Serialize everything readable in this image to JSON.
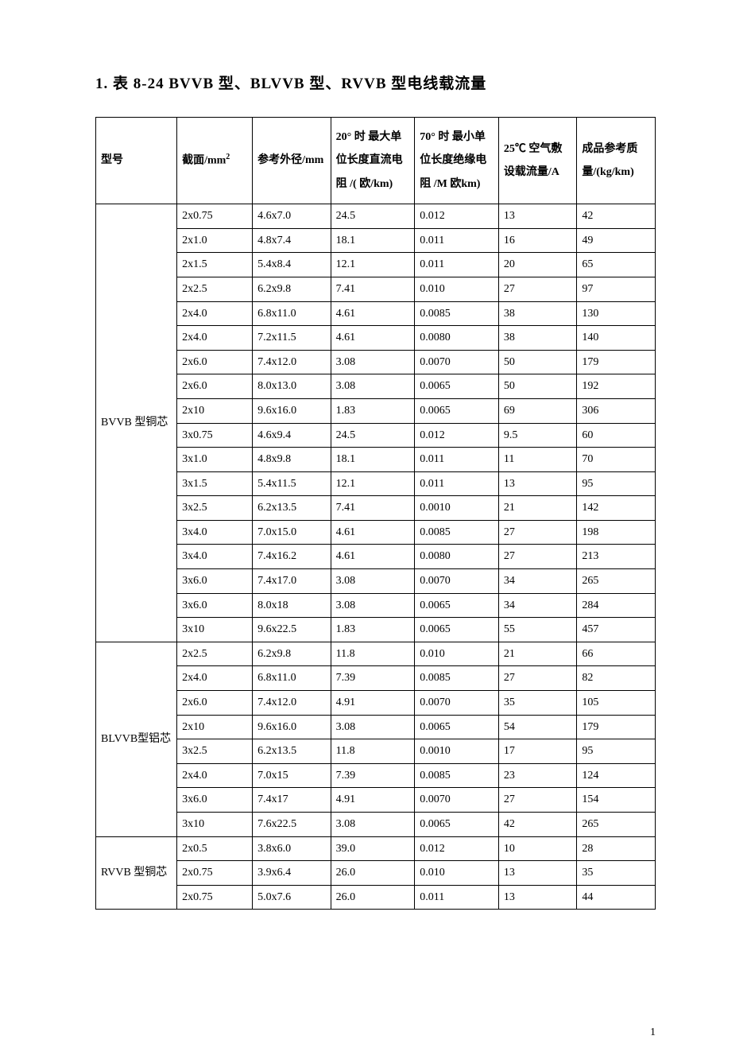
{
  "title": "1. 表 8-24 BVVB 型、BLVVB 型、RVVB 型电线载流量",
  "page_number": "1",
  "table": {
    "columns": [
      {
        "key": "model",
        "label": "型号"
      },
      {
        "key": "section",
        "label": "截面/mm²"
      },
      {
        "key": "diameter",
        "label": "参考外径/mm"
      },
      {
        "key": "dc20",
        "label": "20° 时 最大单位长度直流电阻 /( 欧/km)"
      },
      {
        "key": "ins70",
        "label": "70° 时 最小单位长度绝缘电阻 /M 欧km)"
      },
      {
        "key": "current",
        "label": "25℃ 空气敷设载流量/A"
      },
      {
        "key": "mass",
        "label": "成品参考质 量/(kg/km)"
      }
    ],
    "groups": [
      {
        "model": "BVVB 型铜芯",
        "rows": [
          [
            "2x0.75",
            "4.6x7.0",
            "24.5",
            "0.012",
            "13",
            "42"
          ],
          [
            "2x1.0",
            "4.8x7.4",
            "18.1",
            "0.011",
            "16",
            "49"
          ],
          [
            "2x1.5",
            "5.4x8.4",
            "12.1",
            "0.011",
            "20",
            "65"
          ],
          [
            "2x2.5",
            "6.2x9.8",
            "7.41",
            "0.010",
            "27",
            "97"
          ],
          [
            "2x4.0",
            "6.8x11.0",
            "4.61",
            "0.0085",
            "38",
            "130"
          ],
          [
            "2x4.0",
            "7.2x11.5",
            "4.61",
            "0.0080",
            "38",
            "140"
          ],
          [
            "2x6.0",
            "7.4x12.0",
            "3.08",
            "0.0070",
            "50",
            "179"
          ],
          [
            "2x6.0",
            "8.0x13.0",
            "3.08",
            "0.0065",
            "50",
            "192"
          ],
          [
            "2x10",
            "9.6x16.0",
            "1.83",
            "0.0065",
            "69",
            "306"
          ],
          [
            "3x0.75",
            "4.6x9.4",
            "24.5",
            "0.012",
            "9.5",
            "60"
          ],
          [
            "3x1.0",
            "4.8x9.8",
            "18.1",
            "0.011",
            "11",
            "70"
          ],
          [
            "3x1.5",
            "5.4x11.5",
            "12.1",
            "0.011",
            "13",
            "95"
          ],
          [
            "3x2.5",
            "6.2x13.5",
            "7.41",
            "0.0010",
            "21",
            "142"
          ],
          [
            "3x4.0",
            "7.0x15.0",
            "4.61",
            "0.0085",
            "27",
            "198"
          ],
          [
            "3x4.0",
            "7.4x16.2",
            "4.61",
            "0.0080",
            "27",
            "213"
          ],
          [
            "3x6.0",
            "7.4x17.0",
            "3.08",
            "0.0070",
            "34",
            "265"
          ],
          [
            "3x6.0",
            "8.0x18",
            "3.08",
            "0.0065",
            "34",
            "284"
          ],
          [
            "3x10",
            "9.6x22.5",
            "1.83",
            "0.0065",
            "55",
            "457"
          ]
        ]
      },
      {
        "model": "BLVVB型铝芯",
        "rows": [
          [
            "2x2.5",
            "6.2x9.8",
            "11.8",
            "0.010",
            "21",
            "66"
          ],
          [
            "2x4.0",
            "6.8x11.0",
            "7.39",
            "0.0085",
            "27",
            "82"
          ],
          [
            "2x6.0",
            "7.4x12.0",
            "4.91",
            "0.0070",
            "35",
            "105"
          ],
          [
            "2x10",
            "9.6x16.0",
            "3.08",
            "0.0065",
            "54",
            "179"
          ],
          [
            "3x2.5",
            "6.2x13.5",
            "11.8",
            "0.0010",
            "17",
            "95"
          ],
          [
            "2x4.0",
            "7.0x15",
            "7.39",
            "0.0085",
            "23",
            "124"
          ],
          [
            "3x6.0",
            "7.4x17",
            "4.91",
            "0.0070",
            "27",
            "154"
          ],
          [
            "3x10",
            "7.6x22.5",
            "3.08",
            "0.0065",
            "42",
            "265"
          ]
        ]
      },
      {
        "model": "RVVB 型铜芯",
        "rows": [
          [
            "2x0.5",
            "3.8x6.0",
            "39.0",
            "0.012",
            "10",
            "28"
          ],
          [
            "2x0.75",
            "3.9x6.4",
            "26.0",
            "0.010",
            "13",
            "35"
          ],
          [
            "2x0.75",
            "5.0x7.6",
            "26.0",
            "0.011",
            "13",
            "44"
          ]
        ]
      }
    ]
  },
  "style": {
    "background_color": "#ffffff",
    "text_color": "#000000",
    "border_color": "#000000",
    "title_fontsize": 19,
    "cell_fontsize": 14,
    "font_family": "SimSun"
  }
}
